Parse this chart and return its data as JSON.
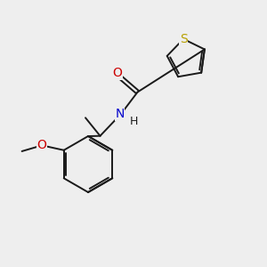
{
  "background_color": "#eeeeee",
  "bond_color": "#1a1a1a",
  "S_color": "#b8a000",
  "O_color": "#cc0000",
  "N_color": "#0000cc",
  "H_color": "#1a1a1a",
  "figsize": [
    3.0,
    3.0
  ],
  "dpi": 100,
  "xlim": [
    0,
    10
  ],
  "ylim": [
    0,
    10
  ],
  "lw": 1.4
}
